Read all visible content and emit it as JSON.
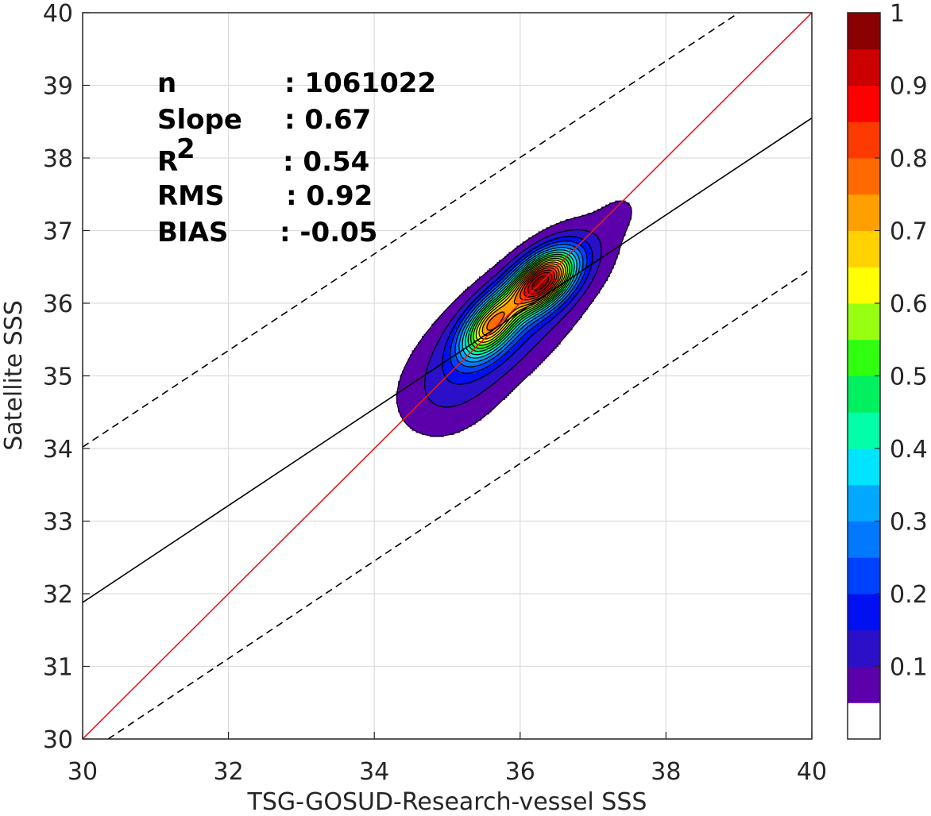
{
  "chart_data": {
    "type": "contour-density",
    "title": "",
    "xlabel": "TSG-GOSUD-Research-vessel SSS",
    "ylabel": "Satellite SSS",
    "xlim": [
      30,
      40
    ],
    "ylim": [
      30,
      40
    ],
    "xticks": [
      "30",
      "32",
      "34",
      "36",
      "38",
      "40"
    ],
    "yticks": [
      "30",
      "31",
      "32",
      "33",
      "34",
      "35",
      "36",
      "37",
      "38",
      "39",
      "40"
    ],
    "grid": true,
    "stats": [
      {
        "label": "n",
        "value": ": 1061022"
      },
      {
        "label": "Slope",
        "value": ": 0.67"
      },
      {
        "label": "R",
        "sup": "2",
        "value": ": 0.54"
      },
      {
        "label": "RMS",
        "value": ": 0.92"
      },
      {
        "label": "BIAS",
        "value": ": -0.05"
      }
    ],
    "lines": [
      {
        "name": "one-to-one",
        "color": "#e41a1c",
        "style": "solid",
        "x": [
          30,
          40
        ],
        "y": [
          30,
          40
        ]
      },
      {
        "name": "regression",
        "color": "#000000",
        "style": "solid",
        "x": [
          30,
          40
        ],
        "y": [
          31.88,
          38.55
        ]
      },
      {
        "name": "upper-bound",
        "color": "#000000",
        "style": "dashed",
        "x": [
          30,
          39
        ],
        "y": [
          34.02,
          40
        ]
      },
      {
        "name": "lower-bound",
        "color": "#000000",
        "style": "dashed",
        "x": [
          30.35,
          40
        ],
        "y": [
          30,
          36.48
        ]
      }
    ],
    "density": [
      {
        "x": 36.3,
        "y": 36.3,
        "sx": 0.3,
        "sy": 0.28,
        "rho": 0.5,
        "amp": 1.0
      },
      {
        "x": 35.6,
        "y": 35.7,
        "sx": 0.27,
        "sy": 0.3,
        "rho": 0.55,
        "amp": 0.68
      },
      {
        "x": 35.7,
        "y": 35.6,
        "sx": 0.75,
        "sy": 0.65,
        "rho": 0.6,
        "amp": 0.2
      },
      {
        "x": 36.8,
        "y": 36.7,
        "sx": 0.5,
        "sy": 0.45,
        "rho": 0.4,
        "amp": 0.08
      },
      {
        "x": 35.0,
        "y": 34.6,
        "sx": 0.55,
        "sy": 0.5,
        "rho": 0.2,
        "amp": 0.06
      },
      {
        "x": 37.4,
        "y": 37.3,
        "sx": 0.25,
        "sy": 0.25,
        "rho": 0.3,
        "amp": 0.04
      }
    ],
    "colorbar": {
      "ticks": [
        "0.1",
        "0.2",
        "0.3",
        "0.4",
        "0.5",
        "0.6",
        "0.7",
        "0.8",
        "0.9",
        "1"
      ],
      "range": [
        0,
        1
      ],
      "levels": [
        0.05,
        0.1,
        0.15,
        0.2,
        0.25,
        0.3,
        0.35,
        0.4,
        0.45,
        0.5,
        0.55,
        0.6,
        0.65,
        0.7,
        0.75,
        0.8,
        0.85,
        0.9,
        0.95
      ],
      "colors": [
        "#ffffff",
        "#5b00aa",
        "#2b10c8",
        "#0010f0",
        "#0040ff",
        "#0078ff",
        "#00a8ff",
        "#00e4ff",
        "#00ffa8",
        "#00f060",
        "#30ff10",
        "#98ff10",
        "#ffff00",
        "#ffd200",
        "#ffa000",
        "#ff6a00",
        "#ff3a00",
        "#ff0000",
        "#cc0000",
        "#8b0000"
      ]
    }
  }
}
